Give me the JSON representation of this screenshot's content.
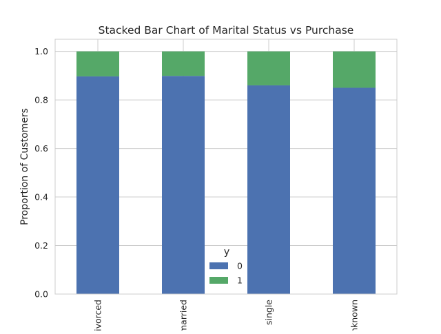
{
  "chart_data": {
    "type": "bar",
    "stacked": true,
    "title": "Stacked Bar Chart of Marital Status vs Purchase",
    "xlabel": "",
    "ylabel": "Proportion of Customers",
    "categories": [
      "divorced",
      "married",
      "single",
      "unknown"
    ],
    "series": [
      {
        "name": "0",
        "values": [
          0.897,
          0.899,
          0.86,
          0.85
        ],
        "color": "#4c72b0"
      },
      {
        "name": "1",
        "values": [
          0.103,
          0.101,
          0.14,
          0.15
        ],
        "color": "#55a868"
      }
    ],
    "ylim": [
      0,
      1.05
    ],
    "yticks": [
      "0.0",
      "0.2",
      "0.4",
      "0.6",
      "0.8",
      "1.0"
    ],
    "grid": true,
    "legend": {
      "title": "y",
      "placement": "lower-center"
    }
  }
}
